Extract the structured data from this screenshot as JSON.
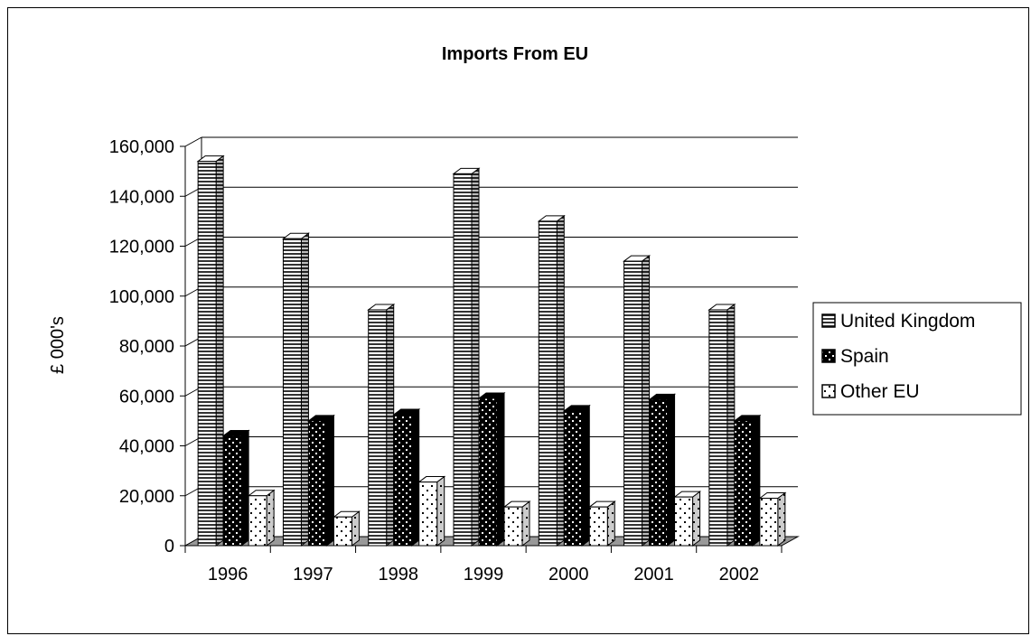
{
  "chart_data": {
    "type": "bar",
    "title": "Imports From EU",
    "ylabel": "£ 000's",
    "xlabel": "",
    "categories": [
      "1996",
      "1997",
      "1998",
      "1999",
      "2000",
      "2001",
      "2002"
    ],
    "series": [
      {
        "name": "United Kingdom",
        "values": [
          154000,
          123000,
          94500,
          149000,
          130000,
          114000,
          94500
        ],
        "pattern": "horizontal-stripes"
      },
      {
        "name": "Spain",
        "values": [
          44000,
          50000,
          52500,
          59000,
          54000,
          58500,
          50000
        ],
        "pattern": "dots-on-black"
      },
      {
        "name": "Other EU",
        "values": [
          20000,
          11500,
          25500,
          15500,
          15500,
          19500,
          19000
        ],
        "pattern": "dots-on-white"
      }
    ],
    "ylim": [
      0,
      160000
    ],
    "yticks": [
      "0",
      "20,000",
      "40,000",
      "60,000",
      "80,000",
      "100,000",
      "120,000",
      "140,000",
      "160,000"
    ],
    "grid": true,
    "legend": "right",
    "three_d": true,
    "colors": {
      "floor": "#999999",
      "bar_outline": "#000000",
      "background": "#ffffff"
    }
  }
}
